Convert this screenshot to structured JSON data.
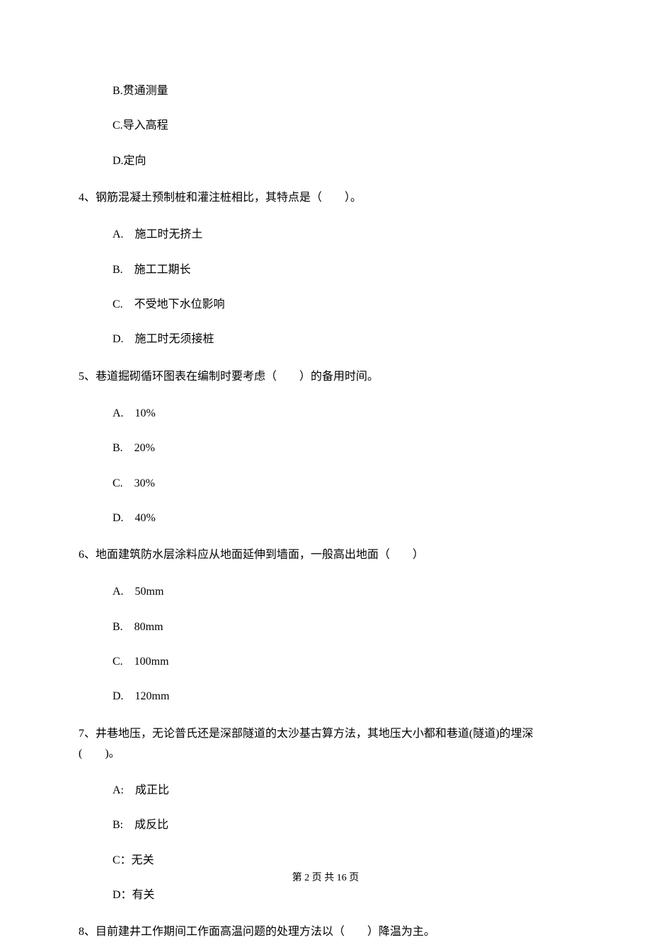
{
  "q3_options": {
    "b": "B.贯通测量",
    "c": "C.导入高程",
    "d": "D.定向"
  },
  "q4": {
    "text": "4、钢筋混凝土预制桩和灌注桩相比，其特点是（　　）。",
    "options": {
      "a": "A.　施工时无挤土",
      "b": "B.　施工工期长",
      "c": "C.　不受地下水位影响",
      "d": "D.　施工时无须接桩"
    }
  },
  "q5": {
    "text": "5、巷道掘砌循环图表在编制时要考虑（　　）的备用时间。",
    "options": {
      "a": "A.　10%",
      "b": "B.　20%",
      "c": "C.　30%",
      "d": "D.　40%"
    }
  },
  "q6": {
    "text": "6、地面建筑防水层涂料应从地面延伸到墙面，一般高出地面（　　）",
    "options": {
      "a": "A.　50mm",
      "b": "B.　80mm",
      "c": "C.　100mm",
      "d": "D.　120mm"
    }
  },
  "q7": {
    "text": "7、井巷地压，无论普氏还是深部隧道的太沙基古算方法，其地压大小都和巷道(隧道)的埋深(　　)。",
    "options": {
      "a": "A:　成正比",
      "b": "B:　成反比",
      "c": "C：无关",
      "d": "D：有关"
    }
  },
  "q8": {
    "text": "8、目前建井工作期间工作面高温问题的处理方法以（　　）降温为主。"
  },
  "footer": "第 2 页 共 16 页"
}
